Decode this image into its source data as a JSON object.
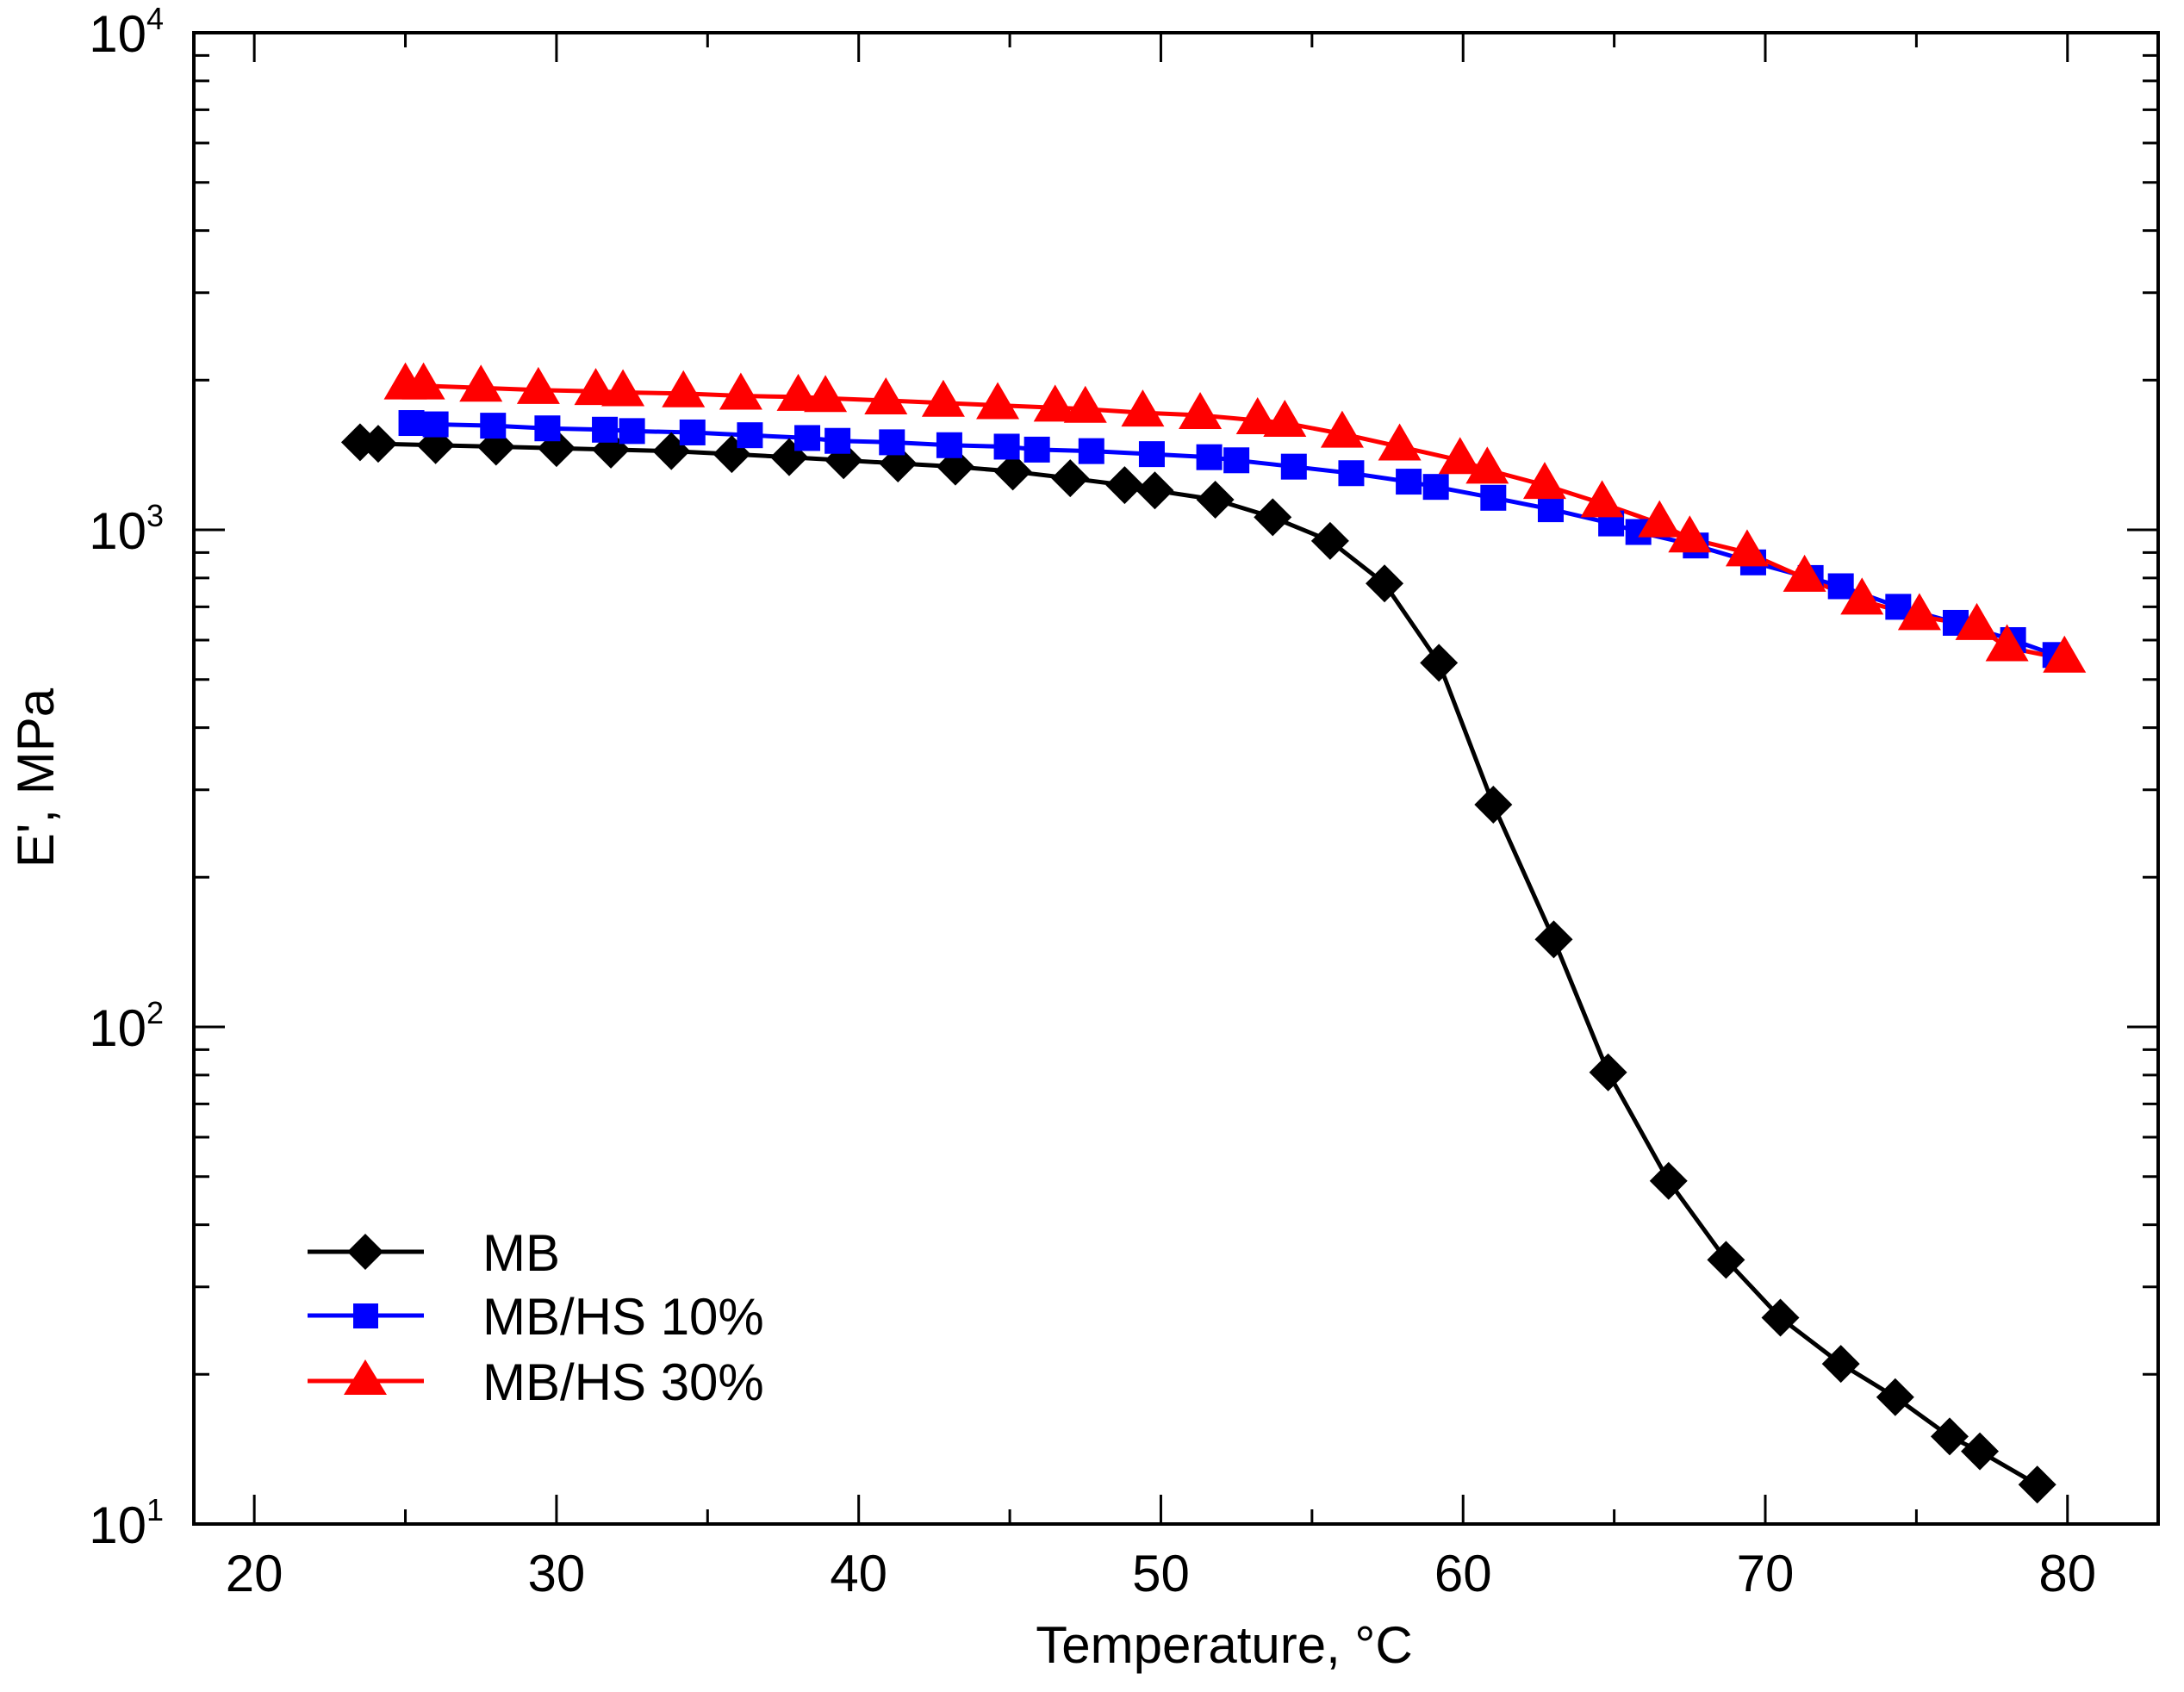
{
  "chart_data": {
    "type": "line",
    "xlabel": "Temperature,  °C",
    "ylabel": "E',  MPa",
    "xlim": [
      18,
      83
    ],
    "ylim": [
      10,
      10000
    ],
    "yscale": "log",
    "x_ticks": [
      20,
      30,
      40,
      50,
      60,
      70,
      80
    ],
    "y_ticks": [
      {
        "value": 10,
        "base": "10",
        "exp": "1"
      },
      {
        "value": 100,
        "base": "10",
        "exp": "2"
      },
      {
        "value": 1000,
        "base": "10",
        "exp": "3"
      },
      {
        "value": 10000,
        "base": "10",
        "exp": "4"
      }
    ],
    "grid": false,
    "legend_position": "bottom-left",
    "series": [
      {
        "name": "MB",
        "color": "#000000",
        "marker": "diamond",
        "x": [
          23.5,
          24.1,
          26.0,
          28.0,
          30.0,
          31.8,
          33.8,
          35.8,
          37.7,
          39.5,
          41.3,
          43.2,
          45.1,
          47.0,
          48.8,
          49.8,
          51.8,
          53.7,
          55.6,
          57.4,
          59.2,
          61.0,
          63.0,
          64.8,
          66.8,
          68.7,
          70.5,
          72.5,
          74.3,
          76.1,
          77.1,
          79.0
        ],
        "y": [
          1500,
          1490,
          1480,
          1470,
          1460,
          1450,
          1440,
          1420,
          1400,
          1380,
          1360,
          1340,
          1310,
          1270,
          1230,
          1200,
          1150,
          1060,
          950,
          780,
          540,
          280,
          150,
          81,
          49,
          34,
          26,
          21,
          18,
          15,
          14,
          12
        ]
      },
      {
        "name": "MB/HS 10%",
        "color": "#0000ff",
        "marker": "square",
        "x": [
          25.2,
          26.0,
          27.9,
          29.7,
          31.6,
          32.5,
          34.5,
          36.4,
          38.3,
          39.3,
          41.1,
          43.0,
          44.9,
          45.9,
          47.7,
          49.7,
          51.6,
          52.5,
          54.4,
          56.3,
          58.2,
          59.1,
          61.0,
          62.9,
          64.9,
          65.8,
          67.7,
          69.6,
          71.5,
          72.5,
          74.4,
          76.3,
          78.2,
          79.6
        ],
        "y": [
          1640,
          1630,
          1620,
          1600,
          1590,
          1580,
          1570,
          1550,
          1530,
          1510,
          1500,
          1480,
          1470,
          1450,
          1440,
          1420,
          1400,
          1380,
          1340,
          1300,
          1250,
          1220,
          1160,
          1100,
          1030,
          990,
          930,
          860,
          800,
          770,
          700,
          650,
          600,
          560
        ]
      },
      {
        "name": "MB/HS 30%",
        "color": "#ff0000",
        "marker": "triangle",
        "x": [
          25.0,
          25.6,
          27.5,
          29.4,
          31.3,
          32.2,
          34.2,
          36.1,
          38.0,
          38.9,
          40.9,
          42.8,
          44.6,
          46.5,
          47.5,
          49.4,
          51.3,
          53.2,
          54.1,
          56.0,
          57.9,
          59.9,
          60.8,
          62.7,
          64.6,
          66.5,
          67.5,
          69.4,
          71.3,
          73.2,
          75.1,
          77.0,
          78.0,
          79.9
        ],
        "y": [
          1950,
          1950,
          1930,
          1910,
          1900,
          1890,
          1880,
          1860,
          1850,
          1840,
          1820,
          1800,
          1780,
          1760,
          1750,
          1720,
          1700,
          1660,
          1640,
          1560,
          1470,
          1380,
          1320,
          1230,
          1130,
          1030,
          960,
          900,
          800,
          720,
          670,
          640,
          580,
          550
        ]
      }
    ]
  }
}
